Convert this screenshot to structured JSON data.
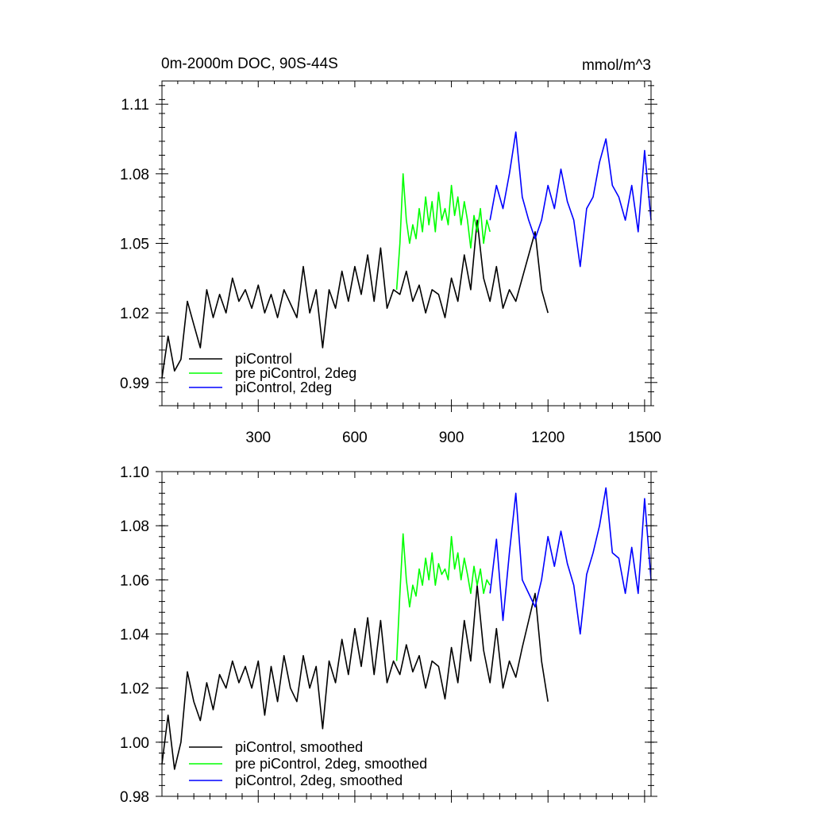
{
  "chart_data": [
    {
      "type": "line",
      "title": "0m-2000m DOC, 90S-44S",
      "units": "mmol/m^3",
      "xlim": [
        1,
        1520
      ],
      "ylim": [
        0.98,
        1.12
      ],
      "xticks": [
        300,
        600,
        900,
        1200,
        1500
      ],
      "xtick_labels": [
        "300",
        "600",
        "900",
        "1200",
        "1500"
      ],
      "yticks": [
        0.99,
        1.02,
        1.05,
        1.08,
        1.11
      ],
      "ytick_labels": [
        "0.99",
        "1.02",
        "1.05",
        "1.08",
        "1.11"
      ],
      "legend_position": "bottom-left",
      "series": [
        {
          "name": "piControl",
          "color": "#000000",
          "x": [
            1,
            20,
            40,
            60,
            80,
            100,
            120,
            140,
            160,
            180,
            200,
            220,
            240,
            260,
            280,
            300,
            320,
            340,
            360,
            380,
            400,
            420,
            440,
            460,
            480,
            500,
            520,
            540,
            560,
            580,
            600,
            620,
            640,
            660,
            680,
            700,
            720,
            740,
            760,
            780,
            800,
            820,
            840,
            860,
            880,
            900,
            920,
            940,
            960,
            980,
            1000,
            1020,
            1040,
            1060,
            1080,
            1100,
            1120,
            1140,
            1160,
            1180,
            1200
          ],
          "y": [
            0.992,
            1.01,
            0.995,
            1.0,
            1.025,
            1.015,
            1.005,
            1.03,
            1.018,
            1.028,
            1.02,
            1.035,
            1.025,
            1.03,
            1.022,
            1.032,
            1.02,
            1.028,
            1.018,
            1.03,
            1.024,
            1.018,
            1.04,
            1.02,
            1.03,
            1.005,
            1.03,
            1.022,
            1.038,
            1.025,
            1.04,
            1.028,
            1.045,
            1.025,
            1.048,
            1.022,
            1.03,
            1.028,
            1.038,
            1.025,
            1.032,
            1.02,
            1.03,
            1.028,
            1.018,
            1.035,
            1.025,
            1.045,
            1.03,
            1.06,
            1.035,
            1.025,
            1.04,
            1.022,
            1.03,
            1.025,
            1.035,
            1.045,
            1.055,
            1.03,
            1.02
          ]
        },
        {
          "name": "pre piControl, 2deg",
          "color": "#00ff00",
          "x": [
            730,
            740,
            750,
            760,
            770,
            780,
            790,
            800,
            810,
            820,
            830,
            840,
            850,
            860,
            870,
            880,
            890,
            900,
            910,
            920,
            930,
            940,
            950,
            960,
            970,
            980,
            990,
            1000,
            1010,
            1020
          ],
          "y": [
            1.03,
            1.05,
            1.08,
            1.06,
            1.05,
            1.058,
            1.052,
            1.065,
            1.055,
            1.07,
            1.058,
            1.068,
            1.055,
            1.072,
            1.06,
            1.065,
            1.058,
            1.075,
            1.062,
            1.07,
            1.058,
            1.068,
            1.06,
            1.048,
            1.062,
            1.055,
            1.065,
            1.05,
            1.06,
            1.055
          ]
        },
        {
          "name": "piControl, 2deg",
          "color": "#0000ff",
          "x": [
            1020,
            1040,
            1060,
            1080,
            1100,
            1120,
            1140,
            1160,
            1180,
            1200,
            1220,
            1240,
            1260,
            1280,
            1300,
            1320,
            1340,
            1360,
            1380,
            1400,
            1420,
            1440,
            1460,
            1480,
            1500,
            1520
          ],
          "y": [
            1.06,
            1.075,
            1.065,
            1.08,
            1.098,
            1.07,
            1.06,
            1.052,
            1.06,
            1.075,
            1.065,
            1.082,
            1.068,
            1.06,
            1.04,
            1.065,
            1.07,
            1.085,
            1.095,
            1.075,
            1.07,
            1.06,
            1.075,
            1.055,
            1.09,
            1.06
          ]
        }
      ]
    },
    {
      "type": "line",
      "xlim": [
        1,
        1520
      ],
      "ylim": [
        0.98,
        1.1
      ],
      "xticks": [
        300,
        600,
        900,
        1200,
        1500
      ],
      "yticks": [
        0.98,
        1.0,
        1.02,
        1.04,
        1.06,
        1.08,
        1.1
      ],
      "ytick_labels": [
        "0.98",
        "1.00",
        "1.02",
        "1.04",
        "1.06",
        "1.08",
        "1.10"
      ],
      "legend_position": "bottom-left",
      "series": [
        {
          "name": "piControl, smoothed",
          "color": "#000000",
          "x": [
            1,
            20,
            40,
            60,
            80,
            100,
            120,
            140,
            160,
            180,
            200,
            220,
            240,
            260,
            280,
            300,
            320,
            340,
            360,
            380,
            400,
            420,
            440,
            460,
            480,
            500,
            520,
            540,
            560,
            580,
            600,
            620,
            640,
            660,
            680,
            700,
            720,
            740,
            760,
            780,
            800,
            820,
            840,
            860,
            880,
            900,
            920,
            940,
            960,
            980,
            1000,
            1020,
            1040,
            1060,
            1080,
            1100,
            1120,
            1140,
            1160,
            1180,
            1200
          ],
          "y": [
            0.992,
            1.01,
            0.99,
            1.0,
            1.026,
            1.015,
            1.008,
            1.022,
            1.012,
            1.025,
            1.02,
            1.03,
            1.022,
            1.028,
            1.02,
            1.03,
            1.01,
            1.028,
            1.015,
            1.032,
            1.02,
            1.015,
            1.032,
            1.02,
            1.028,
            1.005,
            1.03,
            1.022,
            1.038,
            1.025,
            1.042,
            1.028,
            1.046,
            1.025,
            1.045,
            1.022,
            1.03,
            1.025,
            1.036,
            1.026,
            1.032,
            1.02,
            1.03,
            1.028,
            1.016,
            1.035,
            1.022,
            1.045,
            1.03,
            1.058,
            1.034,
            1.022,
            1.042,
            1.02,
            1.03,
            1.024,
            1.035,
            1.045,
            1.055,
            1.03,
            1.015
          ]
        },
        {
          "name": "pre piControl, 2deg, smoothed",
          "color": "#00ff00",
          "x": [
            730,
            740,
            750,
            760,
            770,
            780,
            790,
            800,
            810,
            820,
            830,
            840,
            850,
            860,
            870,
            880,
            890,
            900,
            910,
            920,
            930,
            940,
            950,
            960,
            970,
            980,
            990,
            1000,
            1010,
            1020
          ],
          "y": [
            1.03,
            1.055,
            1.077,
            1.06,
            1.05,
            1.058,
            1.054,
            1.064,
            1.058,
            1.068,
            1.06,
            1.07,
            1.058,
            1.066,
            1.062,
            1.064,
            1.06,
            1.076,
            1.064,
            1.07,
            1.06,
            1.068,
            1.062,
            1.055,
            1.065,
            1.058,
            1.064,
            1.055,
            1.06,
            1.058
          ]
        },
        {
          "name": "piControl, 2deg, smoothed",
          "color": "#0000ff",
          "x": [
            1020,
            1040,
            1060,
            1080,
            1100,
            1120,
            1140,
            1160,
            1180,
            1200,
            1220,
            1240,
            1260,
            1280,
            1300,
            1320,
            1340,
            1360,
            1380,
            1400,
            1420,
            1440,
            1460,
            1480,
            1500,
            1520
          ],
          "y": [
            1.055,
            1.075,
            1.045,
            1.07,
            1.092,
            1.06,
            1.055,
            1.05,
            1.06,
            1.076,
            1.065,
            1.078,
            1.066,
            1.058,
            1.04,
            1.062,
            1.07,
            1.08,
            1.094,
            1.07,
            1.068,
            1.055,
            1.072,
            1.055,
            1.09,
            1.06
          ]
        }
      ]
    }
  ]
}
